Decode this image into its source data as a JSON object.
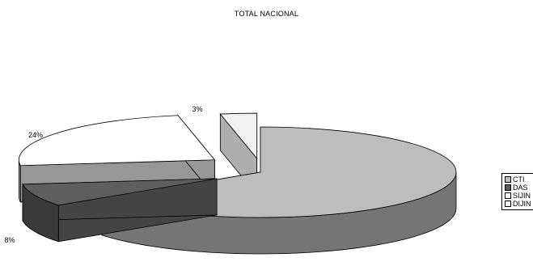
{
  "chart_data": {
    "type": "pie",
    "title": "TOTAL NACIONAL",
    "categories": [
      "CTI",
      "DAS",
      "SIJIN",
      "DIJIN"
    ],
    "values": [
      65,
      8,
      24,
      3
    ],
    "labels": [
      "65%",
      "8%",
      "24%",
      "3%"
    ],
    "colors": {
      "CTI": "#bdbdbd",
      "DAS": "#5e5e5e",
      "SIJIN": "#ffffff",
      "DIJIN": "#f1f1f1"
    },
    "exploded": true,
    "perspective": "3d",
    "legend_position": "right"
  },
  "legend": {
    "items": [
      {
        "label": "CTI",
        "color": "#bdbdbd"
      },
      {
        "label": "DAS",
        "color": "#5e5e5e"
      },
      {
        "label": "SIJIN",
        "color": "#ffffff"
      },
      {
        "label": "DIJIN",
        "color": "#f1f1f1"
      }
    ]
  }
}
